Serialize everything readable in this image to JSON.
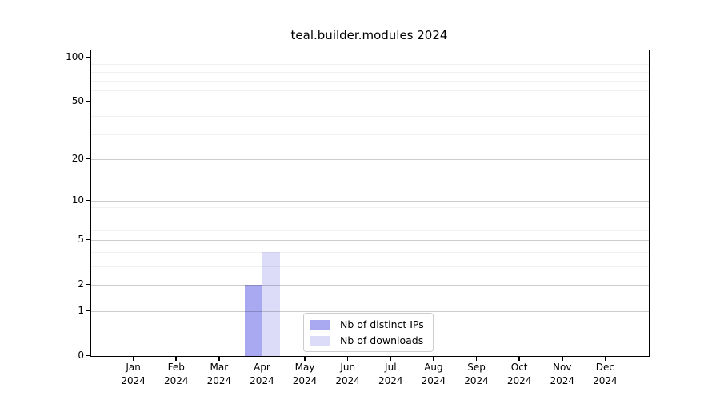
{
  "chart_data": {
    "type": "bar",
    "title": "teal.builder.modules 2024",
    "categories": [
      "Jan",
      "Feb",
      "Mar",
      "Apr",
      "May",
      "Jun",
      "Jul",
      "Aug",
      "Sep",
      "Oct",
      "Nov",
      "Dec"
    ],
    "category_year": "2024",
    "series": [
      {
        "name": "Nb of distinct IPs",
        "color": "#a9a9f2",
        "values": [
          0,
          0,
          0,
          2,
          0,
          0,
          0,
          0,
          0,
          0,
          0,
          0
        ]
      },
      {
        "name": "Nb of downloads",
        "color": "#dcdcf8",
        "values": [
          0,
          0,
          0,
          4,
          0,
          0,
          0,
          0,
          0,
          0,
          0,
          0
        ]
      }
    ],
    "y_scale": "log1p",
    "y_major_ticks": [
      0,
      1,
      2,
      5,
      10,
      20,
      50,
      100
    ],
    "y_minor_gridlines": [
      3,
      4,
      6,
      7,
      8,
      9,
      30,
      40,
      60,
      70,
      80,
      90
    ],
    "ylim": [
      0,
      112
    ],
    "grid": "horizontal",
    "legend_position": "lower-center",
    "background_color": "#ffffff",
    "axis_color": "#000000"
  }
}
